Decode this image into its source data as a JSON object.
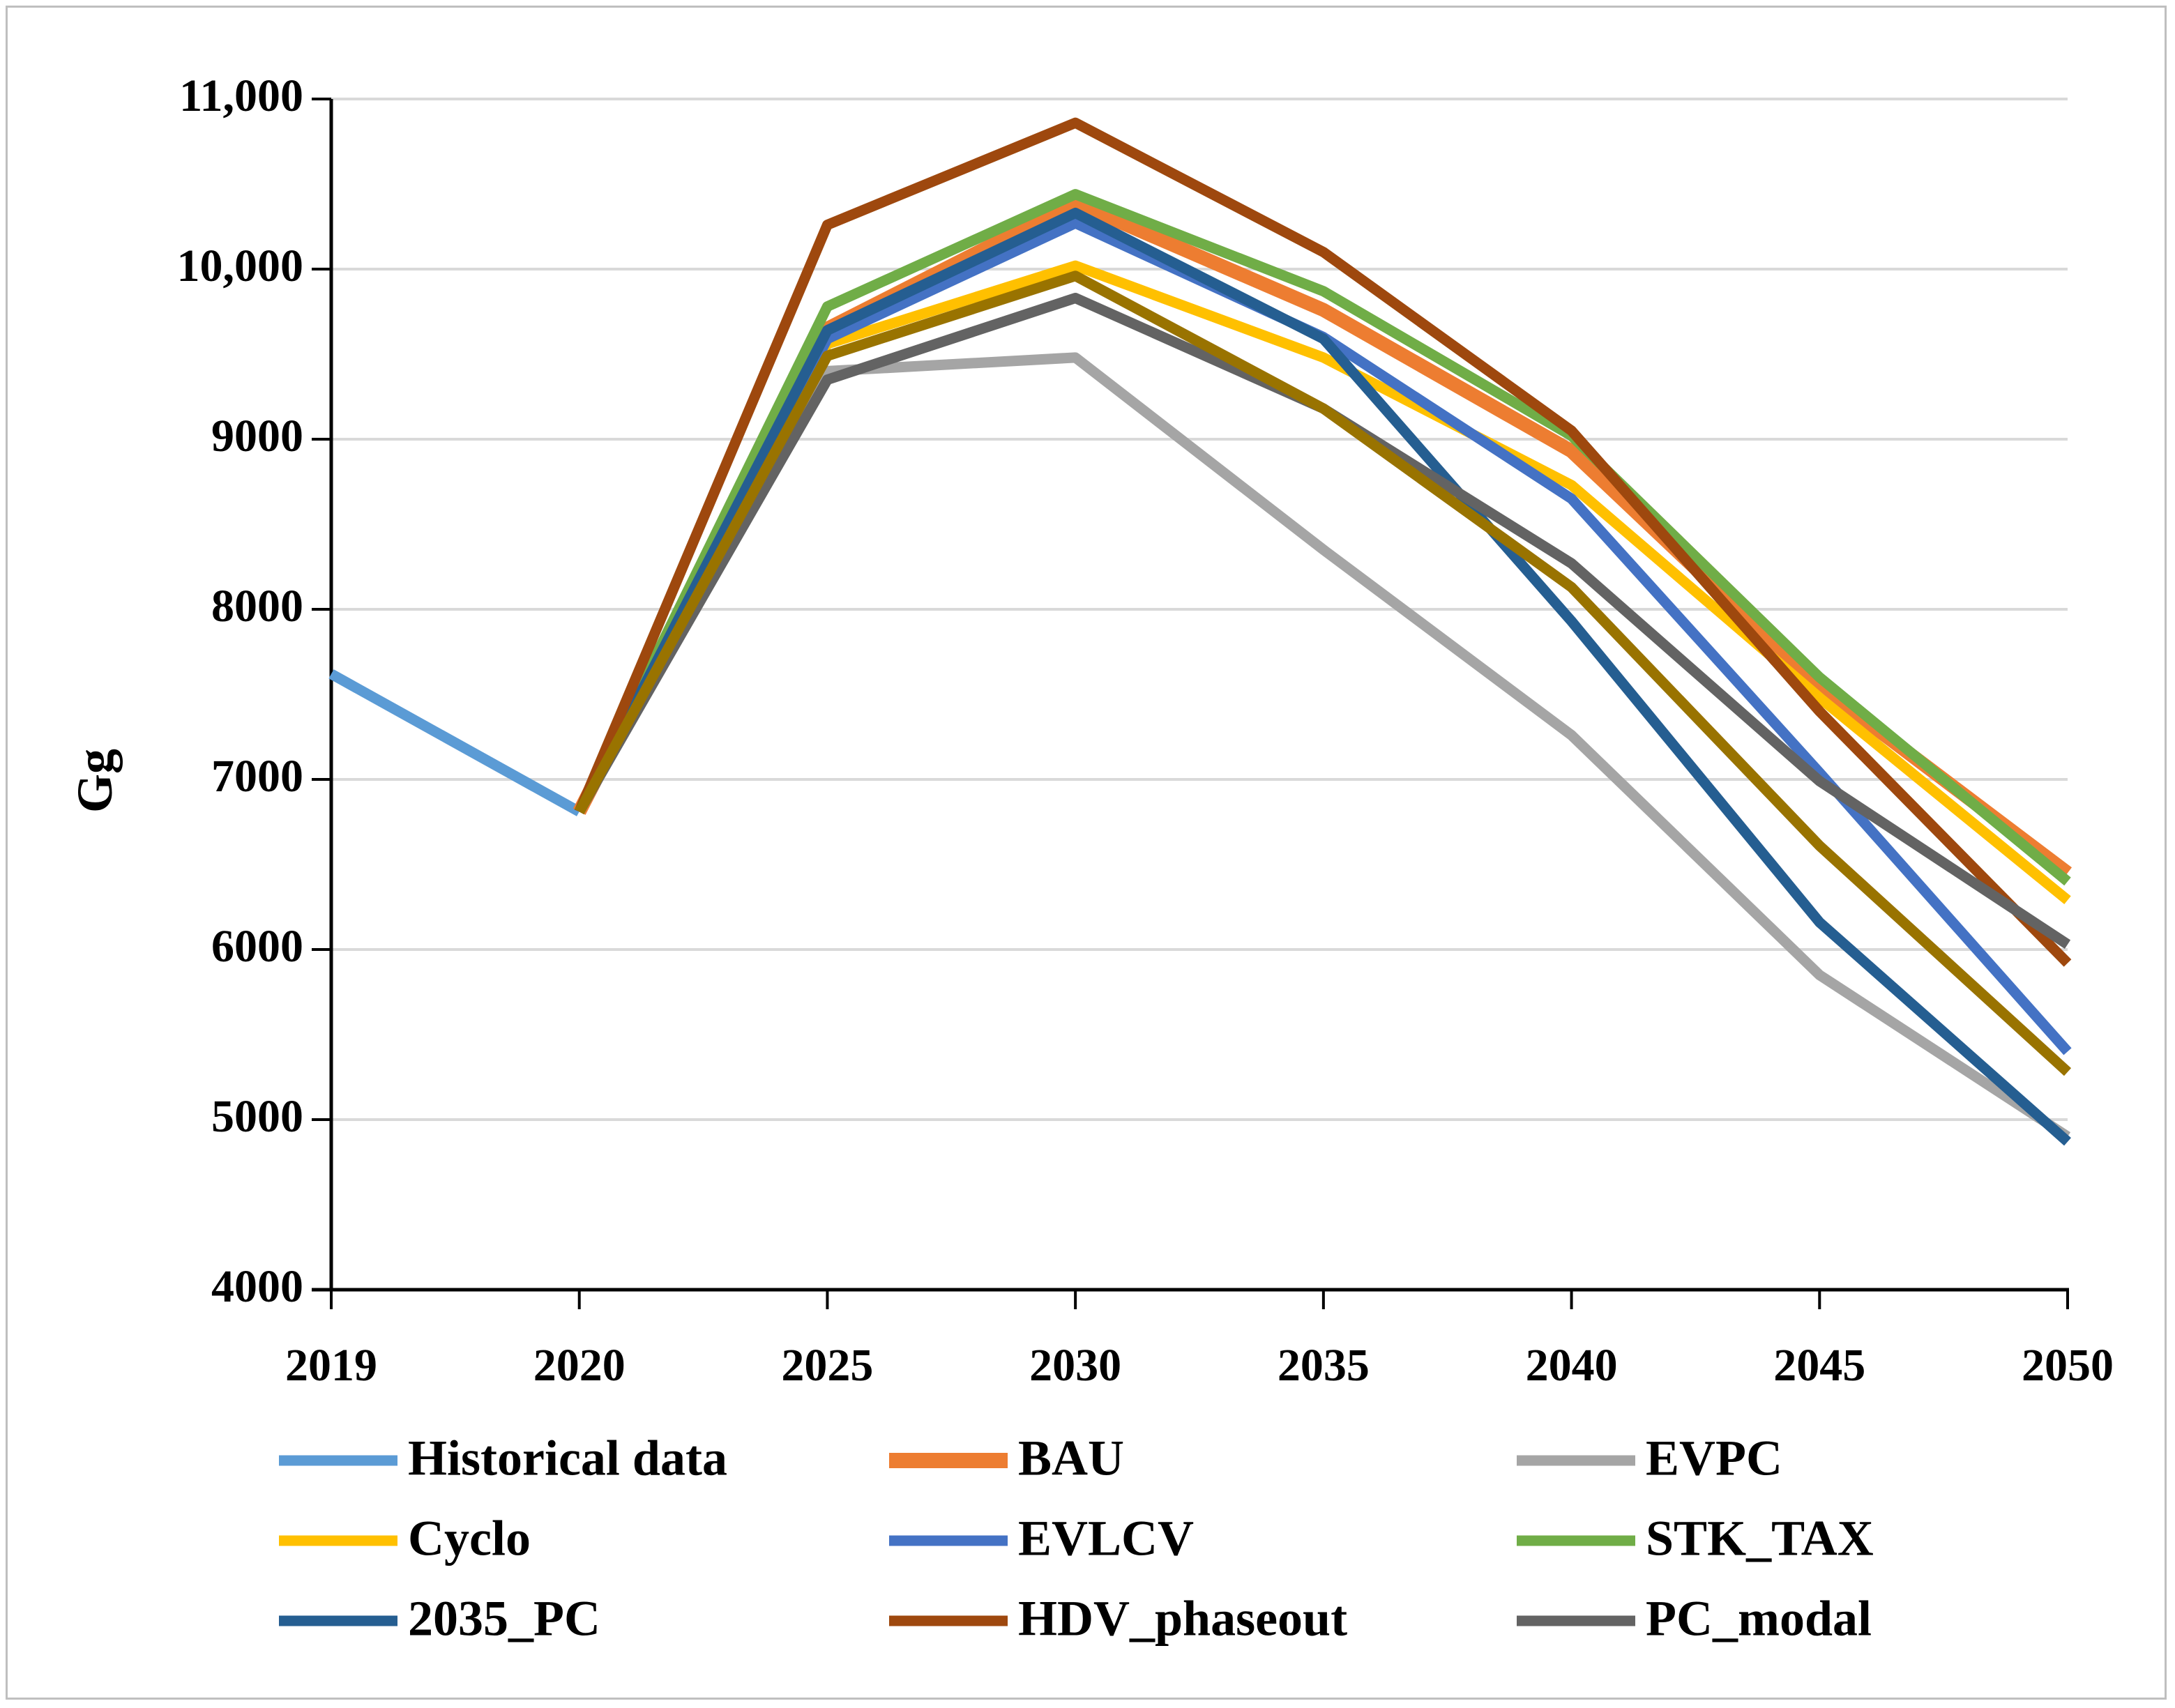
{
  "chart_data": {
    "type": "line",
    "title": "",
    "xlabel": "",
    "ylabel": "Gg",
    "ylim": [
      4000,
      11000
    ],
    "yticks": [
      4000,
      5000,
      6000,
      7000,
      8000,
      9000,
      10000,
      11000
    ],
    "ytick_labels": [
      "4000",
      "5000",
      "6000",
      "7000",
      "8000",
      "9000",
      "10,000",
      "11,000"
    ],
    "categories": [
      "2019",
      "2020",
      "2025",
      "2030",
      "2035",
      "2040",
      "2045",
      "2050"
    ],
    "grid": "horizontal",
    "legend_position": "bottom",
    "series": [
      {
        "name": "Historical data",
        "color": "#5b9bd5",
        "values": [
          7620,
          6810,
          null,
          null,
          null,
          null,
          null,
          null
        ]
      },
      {
        "name": "BAU",
        "color": "#ed7d31",
        "values": [
          null,
          6810,
          9650,
          10390,
          9760,
          8930,
          7550,
          6450
        ]
      },
      {
        "name": "EVPC",
        "color": "#a5a5a5",
        "values": [
          null,
          6810,
          9400,
          9480,
          8350,
          7260,
          5850,
          4900
        ]
      },
      {
        "name": "Cyclo",
        "color": "#ffc000",
        "values": [
          null,
          6810,
          9560,
          10020,
          9480,
          8730,
          7480,
          6290
        ]
      },
      {
        "name": "EVLCV",
        "color": "#4472c4",
        "values": [
          null,
          6810,
          9590,
          10270,
          9600,
          8650,
          7040,
          5400
        ]
      },
      {
        "name": "STK_TAX",
        "color": "#70ad47",
        "values": [
          null,
          6810,
          9780,
          10440,
          9870,
          9020,
          7600,
          6400
        ]
      },
      {
        "name": "2035_PC",
        "color": "#255e91",
        "values": [
          null,
          6810,
          9640,
          10330,
          9590,
          7930,
          6160,
          4870
        ]
      },
      {
        "name": "HDV_phaseout",
        "color": "#9e480e",
        "values": [
          null,
          6810,
          10260,
          10860,
          10100,
          9050,
          7400,
          5920
        ]
      },
      {
        "name": "PC_modal",
        "color": "#636363",
        "values": [
          null,
          6810,
          9350,
          9830,
          9180,
          8270,
          6990,
          6030
        ]
      },
      {
        "name": "",
        "color": "#997300",
        "values": [
          null,
          6810,
          9490,
          9960,
          9180,
          8130,
          6610,
          5280
        ]
      }
    ],
    "legend": [
      [
        "Historical data",
        "BAU",
        "EVPC"
      ],
      [
        "Cyclo",
        "EVLCV",
        "STK_TAX"
      ],
      [
        "2035_PC",
        "HDV_phaseout",
        "PC_modal"
      ]
    ]
  }
}
